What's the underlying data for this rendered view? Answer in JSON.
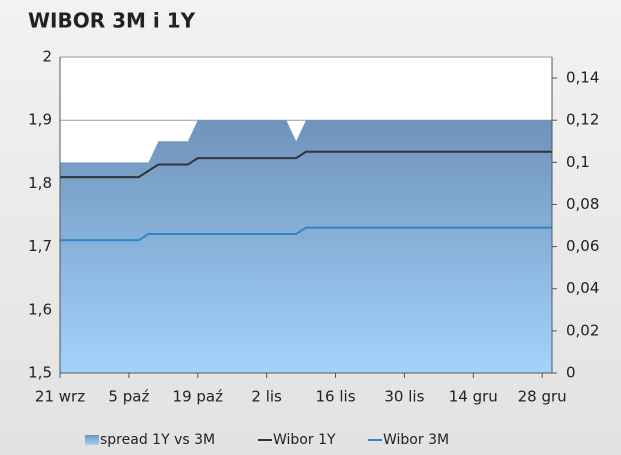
{
  "chart_data": {
    "type": "line",
    "title": "WIBOR 3M i 1Y",
    "categories": [
      "21 wrz",
      null,
      null,
      null,
      null,
      null,
      null,
      "5 paź",
      null,
      null,
      null,
      null,
      null,
      null,
      "19 paź",
      null,
      null,
      null,
      null,
      null,
      null,
      "2 lis",
      null,
      null,
      null,
      null,
      null,
      null,
      "16 lis",
      null,
      null,
      null,
      null,
      null,
      null,
      "30 lis",
      null,
      null,
      null,
      null,
      null,
      null,
      "14 gru",
      null,
      null,
      null,
      null,
      null,
      null,
      "28 gru",
      null
    ],
    "ylim": [
      1.5,
      2
    ],
    "yticks": [
      {
        "value": 1.5,
        "label": "1,5"
      },
      {
        "value": 1.6,
        "label": "1,6"
      },
      {
        "value": 1.7,
        "label": "1,7"
      },
      {
        "value": 1.8,
        "label": "1,8"
      },
      {
        "value": 1.9,
        "label": "1,9"
      },
      2
    ],
    "y2lim": [
      0,
      0.15
    ],
    "y2ticks": [
      0,
      {
        "value": 0.02,
        "label": "0,02"
      },
      {
        "value": 0.04,
        "label": "0,04"
      },
      {
        "value": 0.06,
        "label": "0,06"
      },
      {
        "value": 0.08,
        "label": "0,08"
      },
      {
        "value": 0.1,
        "label": "0,1"
      },
      {
        "value": 0.12,
        "label": "0,12"
      },
      {
        "value": 0.14,
        "label": "0,14"
      }
    ],
    "grid": true,
    "series": [
      {
        "name": "spread 1Y vs 3M",
        "type": "area",
        "axis": "y2",
        "color": "#6f93bb",
        "values": [
          0.1,
          0.1,
          0.1,
          0.1,
          0.1,
          0.1,
          0.1,
          0.1,
          0.1,
          0.1,
          0.11,
          0.11,
          0.11,
          0.11,
          0.12,
          0.12,
          0.12,
          0.12,
          0.12,
          0.12,
          0.12,
          0.12,
          0.12,
          0.12,
          0.11,
          0.12,
          0.12,
          0.12,
          0.12,
          0.12,
          0.12,
          0.12,
          0.12,
          0.12,
          0.12,
          0.12,
          0.12,
          0.12,
          0.12,
          0.12,
          0.12,
          0.12,
          0.12,
          0.12,
          0.12,
          0.12,
          0.12,
          0.12,
          0.12,
          0.12,
          0.12
        ]
      },
      {
        "name": "Wibor 1Y",
        "color": "#333333",
        "values": [
          1.81,
          1.81,
          1.81,
          1.81,
          1.81,
          1.81,
          1.81,
          1.81,
          1.81,
          1.82,
          1.83,
          1.83,
          1.83,
          1.83,
          1.84,
          1.84,
          1.84,
          1.84,
          1.84,
          1.84,
          1.84,
          1.84,
          1.84,
          1.84,
          1.84,
          1.85,
          1.85,
          1.85,
          1.85,
          1.85,
          1.85,
          1.85,
          1.85,
          1.85,
          1.85,
          1.85,
          1.85,
          1.85,
          1.85,
          1.85,
          1.85,
          1.85,
          1.85,
          1.85,
          1.85,
          1.85,
          1.85,
          1.85,
          1.85,
          1.85,
          1.85
        ]
      },
      {
        "name": "Wibor 3M",
        "color": "#2e86c8",
        "values": [
          1.71,
          1.71,
          1.71,
          1.71,
          1.71,
          1.71,
          1.71,
          1.71,
          1.71,
          1.72,
          1.72,
          1.72,
          1.72,
          1.72,
          1.72,
          1.72,
          1.72,
          1.72,
          1.72,
          1.72,
          1.72,
          1.72,
          1.72,
          1.72,
          1.72,
          1.73,
          1.73,
          1.73,
          1.73,
          1.73,
          1.73,
          1.73,
          1.73,
          1.73,
          1.73,
          1.73,
          1.73,
          1.73,
          1.73,
          1.73,
          1.73,
          1.73,
          1.73,
          1.73,
          1.73,
          1.73,
          1.73,
          1.73,
          1.73,
          1.73,
          1.73
        ]
      }
    ]
  }
}
